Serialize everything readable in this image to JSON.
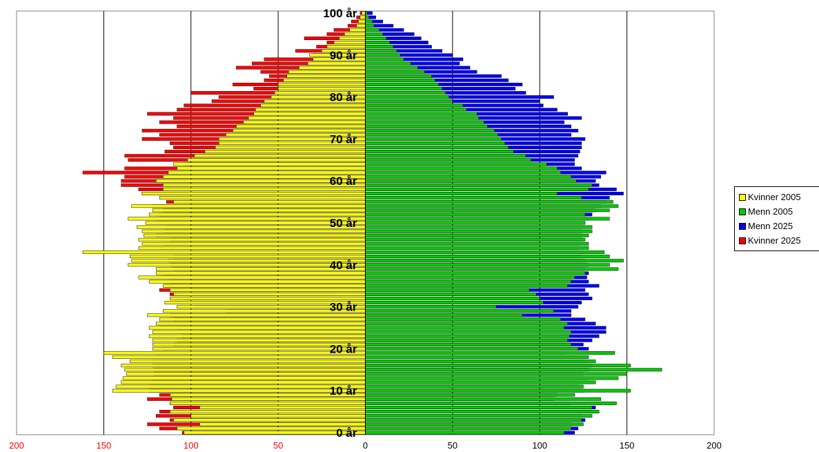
{
  "chart_data": {
    "type": "bar",
    "orientation": "horizontal",
    "layout": "population-pyramid",
    "title": "",
    "xlabel": "",
    "ylabel": "",
    "xlim": [
      -200,
      200
    ],
    "x_ticks": [
      -200,
      -150,
      -100,
      -50,
      0,
      50,
      100,
      150,
      200
    ],
    "x_tick_labels": [
      "200",
      "150",
      "100",
      "50",
      "0",
      "50",
      "100",
      "150",
      "200"
    ],
    "ages": [
      0,
      1,
      2,
      3,
      4,
      5,
      6,
      7,
      8,
      9,
      10,
      11,
      12,
      13,
      14,
      15,
      16,
      17,
      18,
      19,
      20,
      21,
      22,
      23,
      24,
      25,
      26,
      27,
      28,
      29,
      30,
      31,
      32,
      33,
      34,
      35,
      36,
      37,
      38,
      39,
      40,
      41,
      42,
      43,
      44,
      45,
      46,
      47,
      48,
      49,
      50,
      51,
      52,
      53,
      54,
      55,
      56,
      57,
      58,
      59,
      60,
      61,
      62,
      63,
      64,
      65,
      66,
      67,
      68,
      69,
      70,
      71,
      72,
      73,
      74,
      75,
      76,
      77,
      78,
      79,
      80,
      81,
      82,
      83,
      84,
      85,
      86,
      87,
      88,
      89,
      90,
      91,
      92,
      93,
      94,
      95,
      96,
      97,
      98,
      99,
      100
    ],
    "age_tick_labels": [
      {
        "age": 0,
        "label": "0 år"
      },
      {
        "age": 10,
        "label": "10 år"
      },
      {
        "age": 20,
        "label": "20 år"
      },
      {
        "age": 30,
        "label": "30 år"
      },
      {
        "age": 40,
        "label": "40 år"
      },
      {
        "age": 50,
        "label": "50 år"
      },
      {
        "age": 60,
        "label": "60 år"
      },
      {
        "age": 70,
        "label": "70 år"
      },
      {
        "age": 80,
        "label": "80 år"
      },
      {
        "age": 90,
        "label": "90 år"
      },
      {
        "age": 100,
        "label": "100 år"
      }
    ],
    "legend_position": "right",
    "series": [
      {
        "name": "Kvinner 2025",
        "side": "left",
        "color": "#ff0000",
        "values": [
          105,
          118,
          125,
          112,
          120,
          118,
          110,
          112,
          125,
          118,
          124,
          124,
          123,
          122,
          121,
          121,
          122,
          123,
          121,
          120,
          116,
          110,
          108,
          105,
          95,
          108,
          118,
          110,
          112,
          80,
          98,
          108,
          104,
          112,
          118,
          115,
          112,
          118,
          116,
          110,
          112,
          113,
          110,
          100,
          118,
          116,
          112,
          120,
          115,
          114,
          118,
          120,
          118,
          116,
          122,
          114,
          118,
          128,
          130,
          140,
          140,
          138,
          162,
          138,
          104,
          136,
          138,
          115,
          110,
          112,
          128,
          118,
          128,
          108,
          118,
          110,
          125,
          108,
          104,
          88,
          84,
          100,
          64,
          76,
          58,
          55,
          60,
          74,
          65,
          58,
          30,
          40,
          28,
          22,
          35,
          22,
          18,
          10,
          8,
          5,
          3
        ]
      },
      {
        "name": "Kvinner 2005",
        "side": "left",
        "color": "#ffff00",
        "values": [
          104,
          108,
          95,
          110,
          100,
          112,
          95,
          112,
          111,
          112,
          145,
          143,
          140,
          139,
          137,
          138,
          140,
          135,
          145,
          150,
          122,
          122,
          122,
          124,
          122,
          124,
          120,
          118,
          125,
          116,
          108,
          115,
          112,
          110,
          112,
          116,
          124,
          130,
          120,
          120,
          136,
          134,
          135,
          162,
          130,
          128,
          130,
          127,
          128,
          131,
          126,
          136,
          124,
          122,
          134,
          110,
          118,
          128,
          116,
          116,
          120,
          116,
          113,
          108,
          110,
          102,
          98,
          92,
          86,
          84,
          84,
          80,
          76,
          74,
          70,
          67,
          64,
          63,
          60,
          58,
          54,
          52,
          50,
          50,
          47,
          45,
          44,
          38,
          33,
          30,
          32,
          25,
          22,
          18,
          15,
          12,
          9,
          5,
          4,
          3,
          2
        ]
      },
      {
        "name": "Menn 2025",
        "side": "right",
        "color": "#0000ff",
        "values": [
          120,
          122,
          118,
          126,
          124,
          130,
          132,
          118,
          108,
          110,
          126,
          122,
          124,
          128,
          125,
          128,
          130,
          126,
          120,
          114,
          128,
          125,
          130,
          134,
          138,
          138,
          132,
          126,
          118,
          118,
          122,
          124,
          130,
          128,
          126,
          134,
          128,
          127,
          128,
          126,
          128,
          126,
          124,
          124,
          122,
          123,
          125,
          124,
          124,
          126,
          125,
          128,
          130,
          132,
          135,
          138,
          140,
          148,
          144,
          134,
          132,
          135,
          138,
          124,
          120,
          120,
          122,
          123,
          124,
          124,
          126,
          118,
          122,
          118,
          114,
          124,
          116,
          110,
          102,
          100,
          108,
          92,
          86,
          90,
          82,
          78,
          64,
          60,
          54,
          56,
          50,
          44,
          38,
          36,
          32,
          28,
          22,
          16,
          10,
          6,
          4
        ]
      },
      {
        "name": "Menn 2005",
        "side": "right",
        "color": "#00cc00",
        "values": [
          114,
          118,
          125,
          124,
          130,
          134,
          130,
          144,
          135,
          120,
          152,
          125,
          132,
          145,
          150,
          170,
          152,
          132,
          128,
          143,
          122,
          118,
          116,
          117,
          118,
          114,
          116,
          112,
          90,
          108,
          75,
          102,
          100,
          98,
          94,
          116,
          118,
          120,
          126,
          145,
          140,
          148,
          140,
          137,
          128,
          128,
          126,
          128,
          130,
          130,
          126,
          140,
          126,
          140,
          145,
          142,
          124,
          110,
          128,
          130,
          121,
          118,
          112,
          110,
          104,
          95,
          92,
          85,
          82,
          80,
          78,
          76,
          74,
          70,
          68,
          65,
          64,
          58,
          56,
          50,
          48,
          46,
          44,
          42,
          40,
          38,
          34,
          30,
          26,
          22,
          20,
          18,
          16,
          14,
          12,
          10,
          8,
          5,
          4,
          2,
          1
        ]
      }
    ]
  },
  "legend": {
    "items": [
      {
        "label": "Kvinner 2005",
        "color": "#ffff00"
      },
      {
        "label": "Menn 2005",
        "color": "#00cc00"
      },
      {
        "label": "Menn 2025",
        "color": "#0000ff"
      },
      {
        "label": "Kvinner 2025",
        "color": "#ff0000"
      }
    ]
  }
}
